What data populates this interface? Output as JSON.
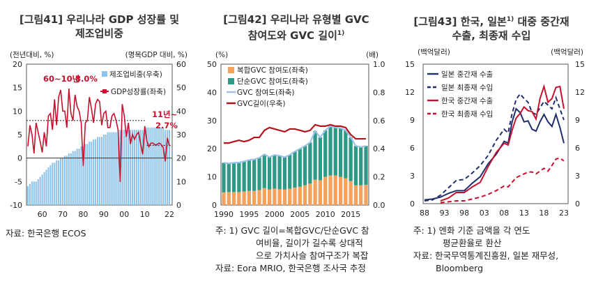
{
  "chart_data": [
    {
      "id": "fig41",
      "type": "bar+line",
      "title_line1": "[그림41] 우리나라 GDP 성장률 및",
      "title_line2": "제조업비중",
      "left_unit": "(전년대비, %)",
      "right_unit": "(명목GDP 대비, %)",
      "ylim_left": [
        -10,
        20
      ],
      "ylim_right": [
        0,
        60
      ],
      "left_ticks": [
        "20",
        "15",
        "10",
        "5",
        "0",
        "-5",
        "-10"
      ],
      "right_ticks": [
        "60",
        "50",
        "40",
        "30",
        "20",
        "10",
        "0"
      ],
      "x_tick_labels": [
        "60",
        "70",
        "80",
        "90",
        "00",
        "10",
        "22"
      ],
      "years": [
        1953,
        1954,
        1955,
        1956,
        1957,
        1958,
        1959,
        1960,
        1961,
        1962,
        1963,
        1964,
        1965,
        1966,
        1967,
        1968,
        1969,
        1970,
        1971,
        1972,
        1973,
        1974,
        1975,
        1976,
        1977,
        1978,
        1979,
        1980,
        1981,
        1982,
        1983,
        1984,
        1985,
        1986,
        1987,
        1988,
        1989,
        1990,
        1991,
        1992,
        1993,
        1994,
        1995,
        1996,
        1997,
        1998,
        1999,
        2000,
        2001,
        2002,
        2003,
        2004,
        2005,
        2006,
        2007,
        2008,
        2009,
        2010,
        2011,
        2012,
        2013,
        2014,
        2015,
        2016,
        2017,
        2018,
        2019,
        2020,
        2021,
        2022
      ],
      "series": [
        {
          "name": "제조업비중(우축)",
          "type": "bar",
          "color": "#8ec3ea",
          "values": [
            8,
            9,
            10,
            10,
            10,
            11,
            12,
            13,
            14,
            15,
            16,
            17,
            18,
            18,
            19,
            19,
            20,
            20,
            21,
            21,
            22,
            22,
            23,
            23,
            24,
            24,
            25,
            25,
            26,
            26,
            27,
            27,
            28,
            28,
            29,
            29,
            29,
            30,
            30,
            31,
            31,
            31,
            31,
            31,
            32,
            32,
            32,
            32,
            32,
            32,
            32,
            32,
            32,
            32,
            32,
            32,
            32,
            32,
            33,
            33,
            33,
            33,
            33,
            33,
            33,
            33,
            33,
            32,
            32,
            32
          ]
        },
        {
          "name": "GDP성장률(좌축)",
          "type": "line",
          "color": "#c8102e",
          "values": [
            2.5,
            7,
            5,
            1,
            7.5,
            5.5,
            3.5,
            1.2,
            5.5,
            2.5,
            9,
            9.5,
            6,
            12.5,
            7,
            13,
            14.5,
            10,
            10,
            6.5,
            14.8,
            9.5,
            8,
            13.5,
            11,
            10,
            7.5,
            -1.7,
            7.5,
            8,
            13,
            10.5,
            7.5,
            11.5,
            12.5,
            12,
            7,
            9.5,
            10,
            6.5,
            6.5,
            9,
            9.5,
            8,
            6,
            -5.1,
            11.5,
            9,
            4.5,
            7.5,
            3,
            5,
            4,
            5,
            5.5,
            3,
            0.8,
            6.8,
            3.7,
            2.4,
            3.2,
            3.2,
            2.8,
            2.9,
            3.2,
            2.9,
            2.2,
            -0.7,
            4.3,
            2.6
          ]
        }
      ],
      "legend": [
        "제조업비중(우축)",
        "GDP성장률(좌축)"
      ],
      "annotations": {
        "a1_text": "60~10년",
        "a1_value": "8.0%",
        "a1_level": 8.0,
        "a1_range": [
          1960,
          2010
        ],
        "a2_text": "11년~",
        "a2_value": "2.7%",
        "a2_level": 2.7,
        "a2_range": [
          2011,
          2022
        ]
      },
      "source": "자료: 한국은행 ECOS"
    },
    {
      "id": "fig42",
      "type": "stacked-bar+line",
      "title_line1": "[그림42] 우리나라 유형별 GVC",
      "title_line2": "참여도와 GVC 길이",
      "title_sup": "1)",
      "left_unit": "(%)",
      "right_unit": "(배)",
      "ylim_left": [
        0,
        50
      ],
      "ylim_right": [
        0,
        1.0
      ],
      "left_ticks": [
        "50",
        "40",
        "30",
        "20",
        "10",
        "0"
      ],
      "right_ticks": [
        "1.0",
        "0.8",
        "0.6",
        "0.4",
        "0.2",
        "0.0"
      ],
      "x_tick_labels": [
        "1990",
        "1995",
        "2000",
        "2005",
        "2010",
        "2015"
      ],
      "years": [
        1990,
        1991,
        1992,
        1993,
        1994,
        1995,
        1996,
        1997,
        1998,
        1999,
        2000,
        2001,
        2002,
        2003,
        2004,
        2005,
        2006,
        2007,
        2008,
        2009,
        2010,
        2011,
        2012,
        2013,
        2014,
        2015,
        2016,
        2017,
        2018
      ],
      "series": [
        {
          "name": "복합GVC 참여도(좌축)",
          "type": "bar",
          "color": "#f5a35c",
          "values": [
            4.5,
            4.6,
            4.6,
            4.6,
            4.8,
            5.0,
            5.0,
            5.3,
            6.0,
            5.5,
            5.8,
            5.6,
            5.5,
            5.8,
            6.2,
            6.5,
            7.0,
            7.6,
            9.0,
            8.8,
            10.0,
            10.5,
            10.5,
            10.0,
            9.5,
            8.5,
            7.0,
            7.0,
            7.2
          ]
        },
        {
          "name": "단순GVC 참여도(좌축)",
          "type": "bar",
          "color": "#2e9a86",
          "values": [
            10.5,
            10.2,
            10.4,
            10.5,
            10.7,
            11.0,
            11.2,
            11.5,
            12.0,
            11.5,
            12.0,
            11.9,
            11.5,
            12.0,
            12.8,
            13.5,
            14.0,
            14.6,
            17.3,
            15.2,
            16.5,
            17.5,
            17.0,
            17.3,
            17.0,
            15.5,
            14.0,
            13.6,
            13.8
          ]
        },
        {
          "name": "GVC 참여도(좌축)",
          "type": "line",
          "color": "#9fc3e7",
          "values": [
            15.0,
            14.8,
            15.0,
            15.1,
            15.5,
            16.0,
            16.2,
            16.8,
            18.0,
            17.0,
            17.8,
            17.5,
            17.0,
            17.8,
            19.0,
            20.0,
            21.0,
            22.2,
            26.3,
            24.0,
            26.5,
            28.0,
            27.5,
            27.3,
            26.5,
            24.0,
            21.0,
            20.6,
            21.0
          ]
        },
        {
          "name": "GVC길이(우축)",
          "type": "line",
          "color": "#b5121b",
          "values": [
            0.44,
            0.44,
            0.45,
            0.46,
            0.45,
            0.46,
            0.48,
            0.48,
            0.53,
            0.55,
            0.54,
            0.53,
            0.52,
            0.54,
            0.54,
            0.53,
            0.52,
            0.53,
            0.57,
            0.56,
            0.56,
            0.57,
            0.56,
            0.56,
            0.55,
            0.5,
            0.47,
            0.47,
            0.47
          ]
        }
      ],
      "legend": [
        "복합GVC 참여도(좌축)",
        "단순GVC 참여도(좌축)",
        "GVC 참여도(좌축)",
        "GVC길이(우축)"
      ],
      "notes": [
        "주: 1) GVC 길이=복합GVC/단순GVC 참",
        "여비율, 길이가 길수록 상대적",
        "으로 가치사슬 참여구조가 복잡",
        "자료: Eora MRIO, 한국은행 조사국 추정"
      ]
    },
    {
      "id": "fig43",
      "type": "line",
      "title_line1": "[그림43] 한국, 일본",
      "title_sup": "1)",
      "title_line1b": " 대중 중간재",
      "title_line2": "수출, 최종재 수입",
      "left_unit": "(백억달러)",
      "right_unit": "(백억달러)",
      "ylim_left": [
        0,
        15
      ],
      "ylim_right": [
        0,
        15
      ],
      "left_ticks": [
        "15",
        "12",
        "9",
        "6",
        "3",
        "0"
      ],
      "right_ticks": [
        "15",
        "12",
        "9",
        "6",
        "3",
        "0"
      ],
      "x_tick_labels": [
        "88",
        "93",
        "98",
        "03",
        "08",
        "13",
        "18",
        "23"
      ],
      "series": [
        {
          "name": "일본 중간재 수출",
          "style": "solid",
          "color": "#1f2f6e",
          "x": [
            1988,
            1990,
            1992,
            1994,
            1996,
            1998,
            2000,
            2002,
            2004,
            2006,
            2008,
            2009,
            2010,
            2011,
            2012,
            2013,
            2014,
            2015,
            2016,
            2017,
            2018,
            2019,
            2020,
            2021,
            2022,
            2023
          ],
          "y": [
            0.4,
            0.5,
            0.7,
            1.1,
            1.4,
            1.4,
            2.2,
            2.9,
            4.3,
            5.3,
            6.7,
            6.5,
            8.8,
            10.2,
            9.8,
            8.8,
            8.9,
            8.0,
            7.8,
            8.8,
            9.6,
            8.8,
            8.3,
            9.6,
            8.2,
            6.5
          ]
        },
        {
          "name": "일본 최종재 수입",
          "style": "dashed",
          "color": "#1f2f6e",
          "x": [
            1988,
            1990,
            1992,
            1994,
            1996,
            1998,
            2000,
            2002,
            2004,
            2006,
            2008,
            2009,
            2010,
            2011,
            2012,
            2013,
            2014,
            2015,
            2016,
            2017,
            2018,
            2019,
            2020,
            2021,
            2022,
            2023
          ],
          "y": [
            0.3,
            0.4,
            0.9,
            1.7,
            2.5,
            2.6,
            3.3,
            4.1,
            5.2,
            6.8,
            8.0,
            7.6,
            9.7,
            11.2,
            11.8,
            11.3,
            10.9,
            9.8,
            9.6,
            10.3,
            11.0,
            10.6,
            10.2,
            11.4,
            10.2,
            9.0
          ]
        },
        {
          "name": "한국 중간재 수출",
          "style": "solid",
          "color": "#c8102e",
          "x": [
            1992,
            1994,
            1996,
            1998,
            2000,
            2002,
            2004,
            2006,
            2008,
            2009,
            2010,
            2011,
            2012,
            2013,
            2014,
            2015,
            2016,
            2017,
            2018,
            2019,
            2020,
            2021,
            2022,
            2023
          ],
          "y": [
            0.3,
            0.6,
            1.2,
            1.2,
            1.8,
            2.3,
            4.0,
            5.5,
            6.5,
            6.3,
            7.9,
            9.2,
            9.7,
            10.4,
            10.0,
            9.9,
            9.1,
            11.3,
            12.6,
            10.9,
            11.3,
            12.5,
            12.6,
            10.2
          ]
        },
        {
          "name": "한국 최종재 수입",
          "style": "dashed",
          "color": "#c8102e",
          "x": [
            1992,
            1994,
            1996,
            1998,
            2000,
            2002,
            2004,
            2006,
            2008,
            2009,
            2010,
            2011,
            2012,
            2013,
            2014,
            2015,
            2016,
            2017,
            2018,
            2019,
            2020,
            2021,
            2022,
            2023
          ],
          "y": [
            0.1,
            0.2,
            0.3,
            0.3,
            0.5,
            0.7,
            1.0,
            1.4,
            1.9,
            1.8,
            2.3,
            2.8,
            3.0,
            3.2,
            3.4,
            3.4,
            3.2,
            3.5,
            3.8,
            3.5,
            4.1,
            4.8,
            4.9,
            4.6
          ]
        }
      ],
      "legend": [
        "일본 중간재 수출",
        "일본 최종재 수입",
        "한국 중간재 수출",
        "한국 최종재 수입"
      ],
      "notes": [
        "주: 1) 엔화 기준 금액을 각 연도",
        "평균환율로 환산",
        "자료: 한국무역통계진흥원, 일본 재무성,",
        "Bloomberg"
      ]
    }
  ]
}
